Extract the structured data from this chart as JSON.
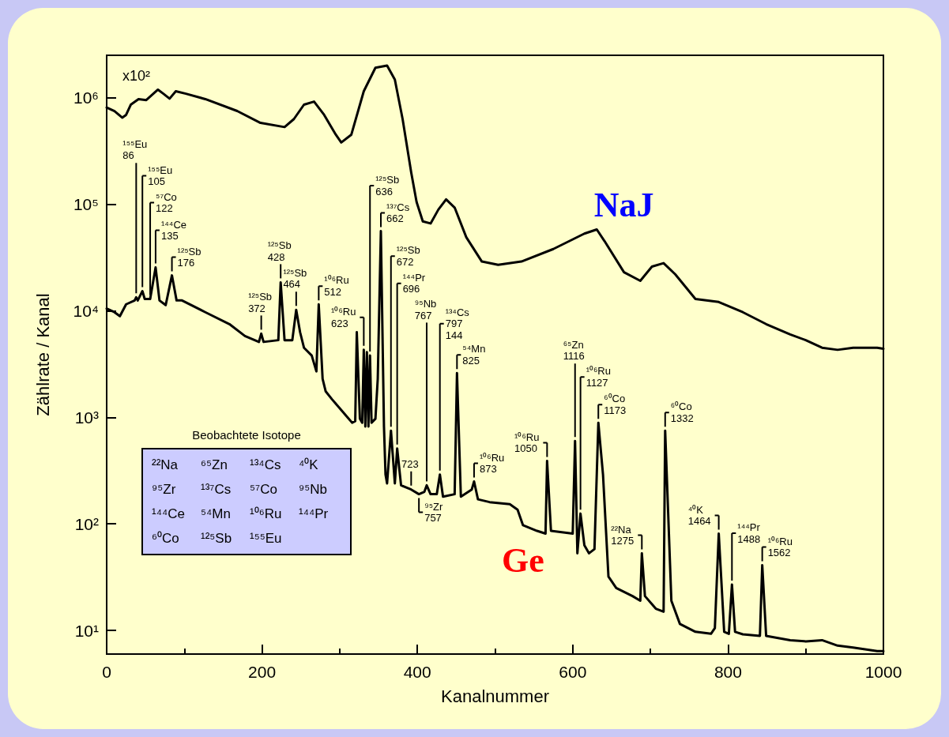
{
  "chart_data": {
    "type": "line",
    "xlabel": "Kanalnummer",
    "ylabel": "Zählrate / Kanal",
    "log": "y",
    "grid": false,
    "legend": false,
    "marker": "none",
    "line_style": "solid",
    "xlim": [
      0,
      1000
    ],
    "xticks": [
      0,
      200,
      400,
      600,
      800,
      1000
    ],
    "ylim": [
      6,
      2500000
    ],
    "yticks": [
      {
        "value": 10,
        "label": "10¹"
      },
      {
        "value": 100,
        "label": "10²"
      },
      {
        "value": 1000,
        "label": "10³"
      },
      {
        "value": 10000,
        "label": "10⁴"
      },
      {
        "value": 100000,
        "label": "10⁵"
      },
      {
        "value": 1000000,
        "label": "10⁶"
      }
    ],
    "series": [
      {
        "name": "NaJ",
        "color": "#000000",
        "x": [
          0,
          10,
          20,
          25,
          31,
          41,
          51,
          66,
          73,
          81,
          89,
          102,
          127,
          168,
          198,
          229,
          241,
          254,
          267,
          280,
          295,
          302,
          315,
          331,
          346,
          361,
          371,
          381,
          392,
          399,
          407,
          417,
          427,
          437,
          448,
          463,
          483,
          504,
          534,
          575,
          615,
          631,
          641,
          666,
          687,
          702,
          717,
          732,
          758,
          788,
          819,
          849,
          880,
          900,
          921,
          941,
          961,
          992,
          1000
        ],
        "values": [
          810000,
          750000,
          650000,
          690000,
          860000,
          970000,
          950000,
          1190000,
          1090000,
          980000,
          1150000,
          1090000,
          970000,
          750000,
          580000,
          530000,
          630000,
          860000,
          920000,
          690000,
          450000,
          380000,
          450000,
          1150000,
          1910000,
          2000000,
          1480000,
          630000,
          200000,
          105000,
          69000,
          66000,
          89000,
          111000,
          93000,
          49000,
          29000,
          27000,
          29000,
          38000,
          53000,
          58000,
          45000,
          23000,
          19100,
          26000,
          28000,
          22000,
          12900,
          12100,
          9700,
          7500,
          6000,
          5300,
          4500,
          4300,
          4500,
          4500,
          4400
        ]
      },
      {
        "name": "Ge",
        "color": "#000000",
        "x": [
          0,
          10,
          17,
          25,
          36,
          38,
          40,
          46,
          49,
          56,
          63,
          68,
          76,
          84,
          90,
          97,
          127,
          158,
          178,
          196,
          199,
          202,
          221,
          224,
          229,
          239,
          244,
          249,
          254,
          264,
          270,
          273,
          278,
          282,
          290,
          310,
          316,
          320,
          322,
          326,
          329,
          331,
          333,
          335,
          337,
          339,
          341,
          346,
          349,
          353,
          357,
          359,
          361,
          366,
          371,
          374,
          379,
          392,
          402,
          409,
          412,
          417,
          425,
          429,
          433,
          448,
          451,
          456,
          470,
          473,
          478,
          493,
          519,
          529,
          536,
          554,
          565,
          567,
          572,
          600,
          603,
          606,
          610,
          615,
          621,
          628,
          633,
          639,
          646,
          656,
          677,
          687,
          689,
          693,
          707,
          717,
          719,
          727,
          738,
          758,
          778,
          783,
          788,
          795,
          801,
          805,
          809,
          819,
          841,
          844,
          849,
          880,
          900,
          921,
          941,
          961,
          992,
          1000
        ],
        "values": [
          10500,
          9700,
          8900,
          11500,
          12500,
          13400,
          12500,
          15300,
          12900,
          12900,
          25500,
          12500,
          11300,
          21500,
          12500,
          12500,
          9700,
          7500,
          5800,
          5100,
          6100,
          5100,
          5300,
          18500,
          5300,
          5300,
          10200,
          6300,
          4500,
          3800,
          2700,
          11500,
          2300,
          1750,
          1480,
          1000,
          890,
          920,
          6300,
          970,
          890,
          4300,
          820,
          4100,
          820,
          3800,
          890,
          970,
          2300,
          56000,
          820,
          290,
          240,
          750,
          240,
          510,
          230,
          210,
          190,
          200,
          230,
          190,
          190,
          290,
          180,
          190,
          2600,
          180,
          210,
          250,
          170,
          160,
          153,
          136,
          97,
          86,
          81,
          390,
          86,
          81,
          600,
          53,
          125,
          63,
          53,
          58,
          890,
          290,
          32,
          25,
          21,
          19,
          53,
          21,
          16,
          15,
          750,
          19,
          11.5,
          9.7,
          9.3,
          10.5,
          81,
          9.7,
          9.3,
          27,
          9.7,
          9.2,
          8.9,
          41,
          8.9,
          8.1,
          7.9,
          8.1,
          7.2,
          6.9,
          6.4,
          6.4
        ]
      }
    ],
    "annotations": [
      "x10²",
      "Beobachtete Isotope",
      "²²Na",
      "⁶⁵Zn",
      "¹³⁴Cs",
      "⁴⁰K",
      "⁹⁵Zr",
      "¹³⁷Cs",
      "⁵⁷Co",
      "⁹⁵Nb",
      "¹⁴⁴Ce",
      "⁵⁴Mn",
      "¹⁰⁶Ru",
      "¹⁴⁴Pr",
      "⁶⁰Co",
      "¹²⁵Sb",
      "¹⁵⁵Eu",
      {
        "text": "¹⁵⁵Eu\n86",
        "x": 38,
        "y": 13400
      },
      {
        "text": "¹⁵⁵Eu\n105",
        "x": 46,
        "y": 15300
      },
      {
        "text": "⁵⁷Co\n122",
        "x": 56,
        "y": 12900
      },
      {
        "text": "¹⁴⁴Ce\n135",
        "x": 63,
        "y": 25500
      },
      {
        "text": "¹²⁵Sb\n176",
        "x": 84,
        "y": 21500
      },
      {
        "text": "¹²⁵Sb\n372",
        "x": 199,
        "y": 6100
      },
      {
        "text": "¹²⁵Sb\n428",
        "x": 224,
        "y": 18500
      },
      {
        "text": "¹²⁵Sb\n464",
        "x": 244,
        "y": 10200
      },
      {
        "text": "¹⁰⁶Ru\n512",
        "x": 273,
        "y": 11500
      },
      {
        "text": "¹⁰⁶Ru\n623",
        "x": 331,
        "y": 4300
      },
      {
        "text": "¹²⁵Sb\n636",
        "x": 339,
        "y": 3800
      },
      {
        "text": "¹³⁷Cs\n662",
        "x": 353,
        "y": 56000
      },
      {
        "text": "¹²⁵Sb\n672",
        "x": 366,
        "y": 750
      },
      {
        "text": "¹⁴⁴Pr\n696",
        "x": 374,
        "y": 510
      },
      {
        "text": "723",
        "x": 392,
        "y": 210
      },
      {
        "text": "⁹⁵Zr\n757",
        "x": 402,
        "y": 190
      },
      {
        "text": "⁹⁵Nb\n767",
        "x": 412,
        "y": 230
      },
      {
        "text": "¹³⁴Cs\n797\n144",
        "x": 429,
        "y": 290
      },
      {
        "text": "⁵⁴Mn\n825",
        "x": 451,
        "y": 2600
      },
      {
        "text": "¹⁰⁶Ru\n873",
        "x": 473,
        "y": 250
      },
      {
        "text": "¹⁰⁶Ru\n1050",
        "x": 567,
        "y": 390
      },
      {
        "text": "⁶⁵Zn\n1116",
        "x": 603,
        "y": 600
      },
      {
        "text": "¹⁰⁶Ru\n1127",
        "x": 610,
        "y": 125
      },
      {
        "text": "⁶⁰Co\n1173",
        "x": 633,
        "y": 890
      },
      {
        "text": "²²Na\n1275",
        "x": 689,
        "y": 53
      },
      {
        "text": "⁶⁰Co\n1332",
        "x": 719,
        "y": 750
      },
      {
        "text": "⁴⁰K\n1464",
        "x": 788,
        "y": 81
      },
      {
        "text": "¹⁴⁴Pr\n1488",
        "x": 805,
        "y": 27
      },
      {
        "text": "¹⁰⁶Ru\n1562",
        "x": 844,
        "y": 41
      }
    ]
  }
}
